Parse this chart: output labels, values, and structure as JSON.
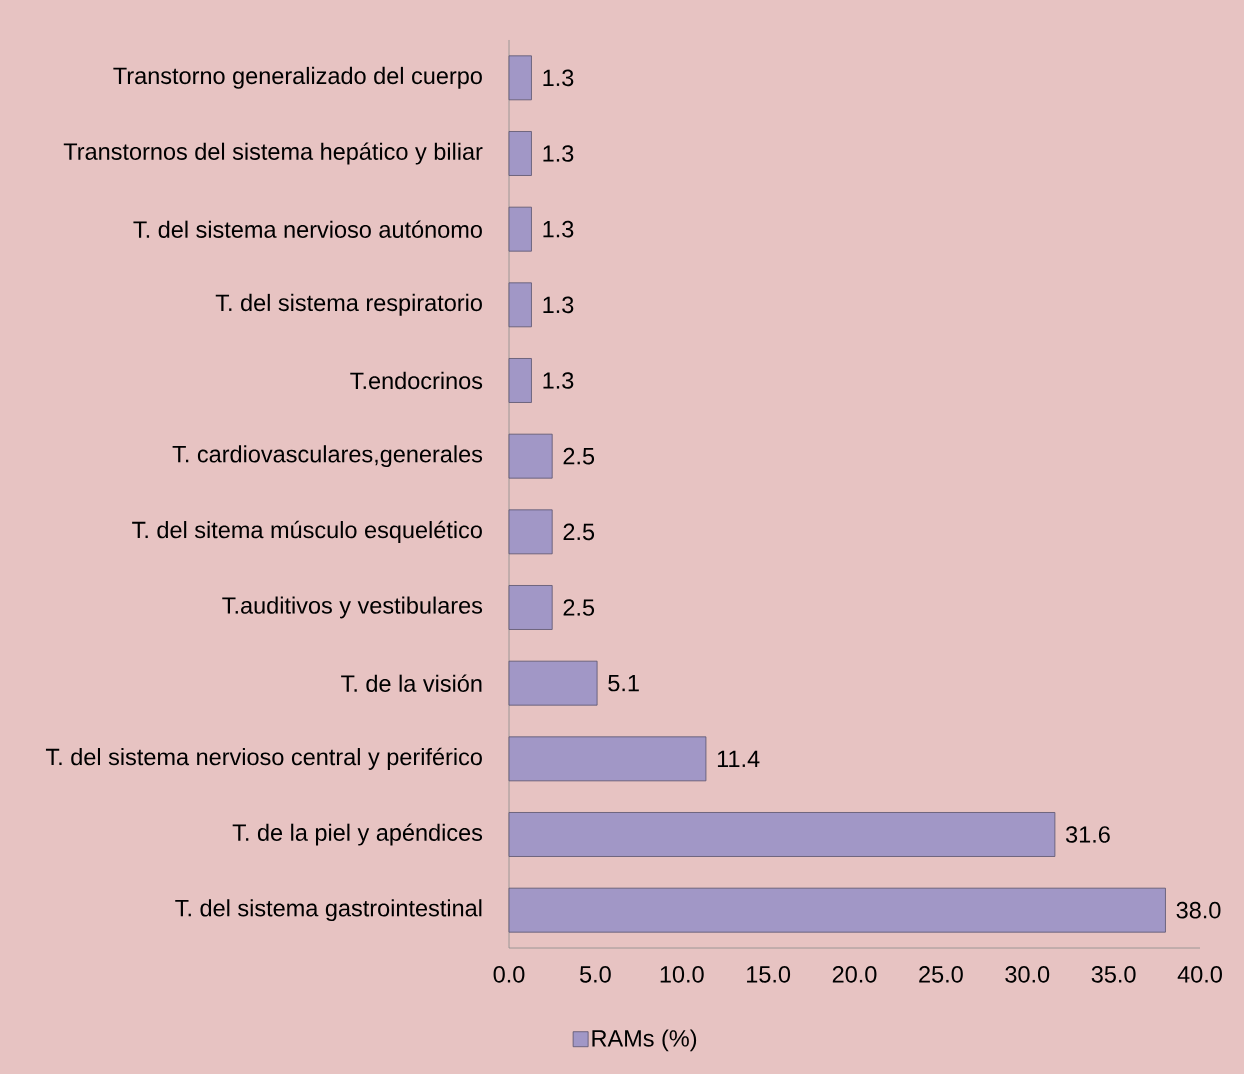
{
  "chart_data": {
    "type": "bar",
    "orientation": "horizontal",
    "categories": [
      "Transtorno generalizado del cuerpo",
      "Transtornos del sistema hepático y biliar",
      "T. del sistema nervioso autónomo",
      "T. del sistema respiratorio",
      "T.endocrinos",
      "T. cardiovasculares,generales",
      "T. del sitema músculo esquelético",
      "T.auditivos y vestibulares",
      "T. de la visión",
      "T. del sistema nervioso central y periférico",
      "T. de la piel y apéndices",
      "T. del sistema gastrointestinal"
    ],
    "series": [
      {
        "name": "RAMs (%)",
        "color": "#a197c6",
        "values": [
          1.3,
          1.3,
          1.3,
          1.3,
          1.3,
          2.5,
          2.5,
          2.5,
          5.1,
          11.4,
          31.6,
          38.0
        ],
        "value_labels": [
          "1.3",
          "1.3",
          "1.3",
          "1.3",
          "1.3",
          "2.5",
          "2.5",
          "2.5",
          "5.1",
          "11.4",
          "31.6",
          "38.0"
        ]
      }
    ],
    "xlim": [
      0,
      40
    ],
    "xticks": [
      {
        "value": 0,
        "label": "0.0"
      },
      {
        "value": 5,
        "label": "5.0"
      },
      {
        "value": 10,
        "label": "10.0"
      },
      {
        "value": 15,
        "label": "15.0"
      },
      {
        "value": 20,
        "label": "20.0"
      },
      {
        "value": 25,
        "label": "25.0"
      },
      {
        "value": 30,
        "label": "30.0"
      },
      {
        "value": 35,
        "label": "35.0"
      },
      {
        "value": 40,
        "label": "40.0"
      }
    ],
    "legend": "bottom"
  }
}
